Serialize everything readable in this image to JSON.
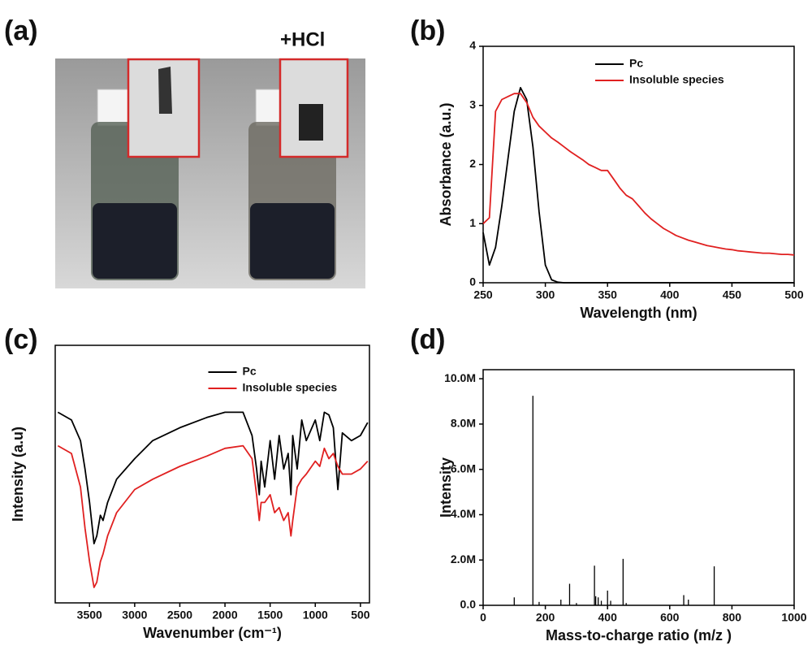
{
  "photo": {
    "panel_label": "(a)",
    "annotation": "+HCl"
  },
  "chart_data": [
    {
      "type": "line",
      "panel_label": "(b)",
      "x_label": "Wavelength (nm)",
      "y_label": "Absorbance (a.u.)",
      "x": [
        250,
        255,
        260,
        265,
        270,
        275,
        280,
        285,
        290,
        295,
        300,
        305,
        310,
        315,
        320,
        325,
        330,
        335,
        340,
        345,
        350,
        355,
        360,
        365,
        370,
        375,
        380,
        385,
        390,
        395,
        400,
        405,
        410,
        415,
        420,
        425,
        430,
        435,
        440,
        445,
        450,
        455,
        460,
        465,
        470,
        475,
        480,
        485,
        490,
        495,
        500
      ],
      "series": [
        {
          "name": "Pc",
          "color": "#000000",
          "values": [
            0.85,
            0.3,
            0.6,
            1.3,
            2.1,
            2.9,
            3.3,
            3.1,
            2.3,
            1.2,
            0.3,
            0.05,
            0.01,
            0,
            0,
            0,
            0,
            0,
            0,
            0,
            0,
            0,
            0,
            0,
            0,
            0,
            0,
            0,
            0,
            0,
            0,
            0,
            0,
            0,
            0,
            0,
            0,
            0,
            0,
            0,
            0,
            0,
            0,
            0,
            0,
            0,
            0,
            0,
            0,
            0,
            0
          ]
        },
        {
          "name": "Insoluble species",
          "color": "#e02020",
          "values": [
            1.0,
            1.1,
            2.9,
            3.1,
            3.15,
            3.2,
            3.2,
            3.05,
            2.8,
            2.65,
            2.55,
            2.45,
            2.38,
            2.3,
            2.22,
            2.15,
            2.08,
            2.0,
            1.95,
            1.9,
            1.9,
            1.75,
            1.6,
            1.48,
            1.42,
            1.3,
            1.18,
            1.08,
            1.0,
            0.92,
            0.86,
            0.8,
            0.76,
            0.72,
            0.69,
            0.66,
            0.63,
            0.61,
            0.59,
            0.57,
            0.56,
            0.54,
            0.53,
            0.52,
            0.51,
            0.5,
            0.5,
            0.49,
            0.48,
            0.48,
            0.47
          ]
        }
      ],
      "xlim": [
        250,
        500
      ],
      "ylim": [
        0,
        4
      ],
      "xticks": [
        250,
        300,
        350,
        400,
        450,
        500
      ],
      "yticks": [
        0,
        1,
        2,
        3,
        4
      ],
      "legend": "upper right"
    },
    {
      "type": "line",
      "panel_label": "(c)",
      "x_label": "Wavenumber (cm⁻¹)",
      "y_label": "Intensity (a.u)",
      "x": [
        3850,
        3700,
        3600,
        3550,
        3500,
        3450,
        3420,
        3380,
        3350,
        3300,
        3200,
        3000,
        2800,
        2500,
        2200,
        2000,
        1800,
        1700,
        1650,
        1620,
        1600,
        1560,
        1500,
        1450,
        1400,
        1350,
        1300,
        1270,
        1250,
        1200,
        1150,
        1100,
        1000,
        950,
        900,
        850,
        800,
        750,
        700,
        600,
        500,
        420
      ],
      "series": [
        {
          "name": "Pc",
          "color": "#000000",
          "values": [
            74,
            71,
            63,
            52,
            39,
            23,
            26,
            34,
            32,
            39,
            48,
            56,
            63,
            68,
            72,
            74,
            74,
            65,
            52,
            42,
            55,
            45,
            63,
            48,
            65,
            52,
            58,
            42,
            65,
            52,
            71,
            63,
            71,
            63,
            74,
            73,
            68,
            44,
            66,
            63,
            65,
            70
          ]
        },
        {
          "name": "Insoluble species",
          "color": "#e02020",
          "values": [
            61,
            58,
            45,
            29,
            16,
            6,
            8,
            16,
            19,
            26,
            35,
            44,
            48,
            53,
            57,
            60,
            61,
            56,
            42,
            32,
            39,
            39,
            42,
            35,
            37,
            32,
            35,
            26,
            32,
            45,
            48,
            50,
            55,
            53,
            60,
            56,
            58,
            53,
            50,
            50,
            52,
            55
          ]
        }
      ],
      "xlim": [
        3880,
        400
      ],
      "ylim": [
        0,
        100
      ],
      "xticks": [
        3500,
        3000,
        2500,
        2000,
        1500,
        1000,
        500
      ],
      "legend": "upper center"
    },
    {
      "type": "stem",
      "panel_label": "(d)",
      "x_label": "Mass-to-charge ratio (m/z )",
      "y_label": "Intensity",
      "color": "#000000",
      "x": [
        100,
        160,
        180,
        250,
        278,
        300,
        358,
        362,
        370,
        380,
        400,
        410,
        450,
        460,
        645,
        660,
        743
      ],
      "values": [
        350000,
        9250000,
        150000,
        250000,
        950000,
        100000,
        1750000,
        400000,
        350000,
        200000,
        650000,
        200000,
        2050000,
        100000,
        450000,
        250000,
        1720000
      ],
      "xlim": [
        0,
        1000
      ],
      "ylim": [
        0,
        10400000
      ],
      "xticks": [
        0,
        200,
        400,
        600,
        800,
        1000
      ],
      "yticks": [
        {
          "value": 0,
          "label": "0.0"
        },
        {
          "value": 2000000,
          "label": "2.0M"
        },
        {
          "value": 4000000,
          "label": "4.0M"
        },
        {
          "value": 6000000,
          "label": "6.0M"
        },
        {
          "value": 8000000,
          "label": "8.0M"
        },
        {
          "value": 10000000,
          "label": "10.0M"
        }
      ]
    }
  ]
}
